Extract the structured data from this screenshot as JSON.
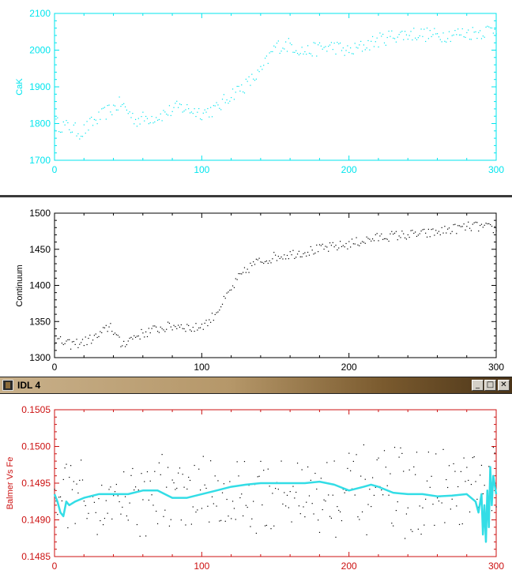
{
  "window": {
    "title": "IDL 4",
    "minimize_label": "_",
    "maximize_label": "□",
    "close_label": "✕"
  },
  "colors": {
    "cyan": "#00e5ee",
    "black": "#000000",
    "red": "#cc1111",
    "cyan_line": "#33dde6"
  },
  "chart_data": [
    {
      "type": "scatter",
      "ylabel": "CaK",
      "xlim": [
        0,
        300
      ],
      "ylim": [
        1700,
        2100
      ],
      "xticks": [
        "0",
        "100",
        "200",
        "300"
      ],
      "yticks": [
        "1700",
        "1800",
        "1900",
        "2000",
        "2100"
      ],
      "grid": false,
      "anchors": {
        "x": [
          0,
          10,
          18,
          25,
          35,
          45,
          55,
          70,
          85,
          100,
          110,
          120,
          130,
          140,
          150,
          160,
          170,
          180,
          190,
          200,
          215,
          230,
          245,
          260,
          275,
          290,
          300
        ],
        "y": [
          1800,
          1790,
          1775,
          1800,
          1830,
          1855,
          1810,
          1820,
          1845,
          1830,
          1840,
          1880,
          1905,
          1940,
          2010,
          2015,
          1995,
          2005,
          2010,
          1995,
          2020,
          2040,
          2045,
          2040,
          2045,
          2050,
          2060
        ]
      }
    },
    {
      "type": "scatter",
      "ylabel": "Continuum",
      "xlim": [
        0,
        300
      ],
      "ylim": [
        1300,
        1500
      ],
      "xticks": [
        "0",
        "100",
        "200",
        "300"
      ],
      "yticks": [
        "1300",
        "1350",
        "1400",
        "1450",
        "1500"
      ],
      "grid": false,
      "anchors": {
        "x": [
          0,
          10,
          20,
          30,
          38,
          45,
          55,
          70,
          85,
          95,
          105,
          115,
          125,
          135,
          150,
          165,
          180,
          195,
          210,
          225,
          240,
          255,
          270,
          285,
          300
        ],
        "y": [
          1325,
          1318,
          1322,
          1330,
          1345,
          1318,
          1330,
          1340,
          1345,
          1340,
          1350,
          1378,
          1410,
          1430,
          1440,
          1445,
          1450,
          1455,
          1462,
          1468,
          1470,
          1472,
          1478,
          1482,
          1478
        ]
      }
    },
    {
      "type": "scatter",
      "ylabel": "Balmer Vs Fe",
      "xlim": [
        0,
        300
      ],
      "ylim": [
        0.1485,
        0.1505
      ],
      "xticks": [
        "0",
        "100",
        "200",
        "300"
      ],
      "yticks": [
        "0.1485",
        "0.1490",
        "0.1495",
        "0.1500",
        "0.1505"
      ],
      "grid": false,
      "points_mean": 0.14935,
      "points_spread": 0.00045,
      "line": {
        "x": [
          0,
          2,
          4,
          6,
          8,
          10,
          14,
          20,
          30,
          40,
          50,
          60,
          70,
          80,
          90,
          100,
          110,
          120,
          130,
          140,
          150,
          160,
          170,
          180,
          190,
          200,
          210,
          215,
          220,
          230,
          240,
          250,
          260,
          270,
          280,
          286,
          288,
          290,
          291,
          292,
          293,
          294,
          295,
          296,
          297,
          298,
          300
        ],
        "y": [
          0.14935,
          0.14925,
          0.1491,
          0.14905,
          0.14925,
          0.1492,
          0.14925,
          0.1493,
          0.14935,
          0.14935,
          0.14935,
          0.1494,
          0.1494,
          0.1493,
          0.1493,
          0.14935,
          0.1494,
          0.14945,
          0.14948,
          0.1495,
          0.1495,
          0.1495,
          0.1495,
          0.14952,
          0.14948,
          0.1494,
          0.14945,
          0.14948,
          0.14945,
          0.14937,
          0.14935,
          0.14935,
          0.14932,
          0.14933,
          0.14935,
          0.14925,
          0.1491,
          0.14935,
          0.1488,
          0.1492,
          0.1487,
          0.1494,
          0.1489,
          0.14972,
          0.1492,
          0.1496,
          0.14935
        ]
      }
    }
  ]
}
